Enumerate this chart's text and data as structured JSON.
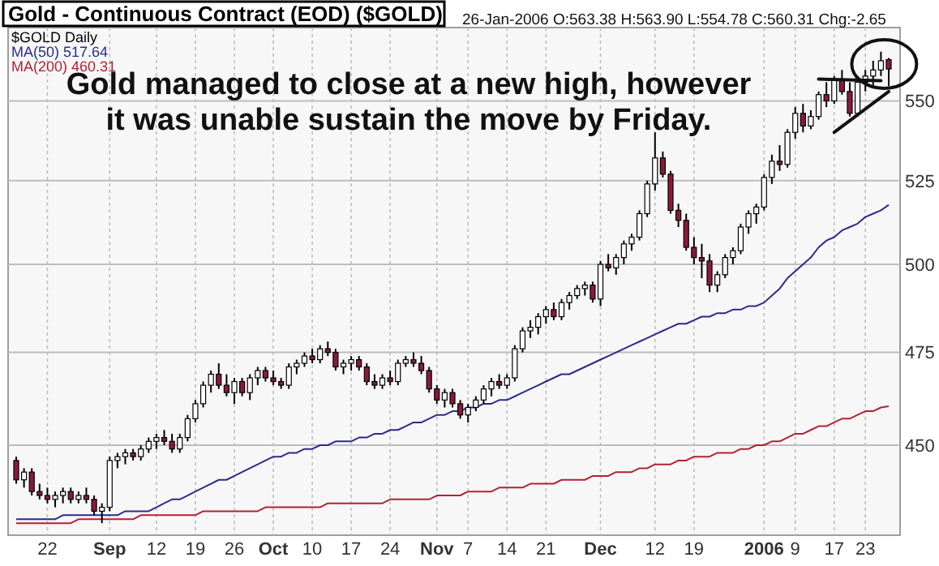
{
  "chart_data": {
    "type": "candlestick",
    "title": "Gold - Continuous Contract (EOD) ($GOLD)",
    "annotations": [
      "26-Jan-2006 O:563.38 H:563.90 L:554.78 C:560.31 Chg:-2.65",
      "Gold managed to close at a new high, however",
      "it was unable sustain the move by Friday."
    ],
    "categories": [
      null,
      null,
      null,
      null,
      "22",
      null,
      null,
      null,
      null,
      null,
      null,
      null,
      "Sep",
      null,
      null,
      null,
      null,
      null,
      "12",
      null,
      null,
      null,
      null,
      "19",
      null,
      null,
      null,
      null,
      "26",
      null,
      null,
      null,
      null,
      "Oct",
      null,
      null,
      null,
      null,
      "10",
      null,
      null,
      null,
      null,
      "17",
      null,
      null,
      null,
      null,
      "24",
      null,
      null,
      null,
      null,
      null,
      "Nov",
      null,
      null,
      null,
      "7",
      null,
      null,
      null,
      null,
      "14",
      null,
      null,
      null,
      null,
      "21",
      null,
      null,
      null,
      null,
      null,
      null,
      "Dec",
      null,
      null,
      null,
      null,
      null,
      null,
      "12",
      null,
      null,
      null,
      null,
      "19",
      null,
      null,
      null,
      null,
      null,
      null,
      null,
      null,
      "2006",
      null,
      null,
      null,
      "9",
      null,
      null,
      null,
      null,
      "17",
      null,
      null,
      null,
      "23",
      null,
      null,
      null
    ],
    "ylim": [
      427,
      574
    ],
    "yticks": [
      450,
      475,
      500,
      525,
      550
    ],
    "log": true,
    "grid": true,
    "legend": "top left",
    "series": [
      {
        "type": "candlestick",
        "name": "$GOLD Daily",
        "color": "#000000",
        "colors": [
          "#8b1a3a",
          "#ffffff",
          "#8b1a3a",
          "#8b1a3a",
          "#8b1a3a",
          "#ffffff",
          "#ffffff",
          "#8b1a3a",
          "#ffffff",
          "#8b1a3a",
          "#8b1a3a",
          "#ffffff",
          "#ffffff",
          "#ffffff",
          "#ffffff",
          "#8b1a3a",
          "#ffffff",
          "#ffffff",
          "#ffffff",
          "#8b1a3a",
          "#8b1a3a",
          "#ffffff",
          "#ffffff",
          "#ffffff",
          "#ffffff",
          "#ffffff",
          "#8b1a3a",
          "#8b1a3a",
          "#ffffff",
          "#8b1a3a",
          "#ffffff",
          "#ffffff",
          "#8b1a3a",
          "#8b1a3a",
          "#8b1a3a",
          "#ffffff",
          "#ffffff",
          "#ffffff",
          "#8b1a3a",
          "#ffffff",
          "#8b1a3a",
          "#8b1a3a",
          "#ffffff",
          "#ffffff",
          "#8b1a3a",
          "#8b1a3a",
          "#8b1a3a",
          "#ffffff",
          "#8b1a3a",
          "#ffffff",
          "#ffffff",
          "#8b1a3a",
          "#8b1a3a",
          "#8b1a3a",
          "#8b1a3a",
          "#ffffff",
          "#8b1a3a",
          "#8b1a3a",
          "#ffffff",
          "#ffffff",
          "#ffffff",
          "#ffffff",
          "#8b1a3a",
          "#ffffff",
          "#ffffff",
          "#ffffff",
          "#ffffff",
          "#ffffff",
          "#ffffff",
          "#8b1a3a",
          "#ffffff",
          "#ffffff",
          "#ffffff",
          "#ffffff",
          "#8b1a3a",
          "#ffffff",
          "#8b1a3a",
          "#ffffff",
          "#ffffff",
          "#ffffff",
          "#ffffff",
          "#ffffff",
          "#ffffff",
          "#8b1a3a",
          "#8b1a3a",
          "#8b1a3a",
          "#8b1a3a",
          "#8b1a3a",
          "#8b1a3a",
          "#8b1a3a",
          "#ffffff",
          "#ffffff",
          "#ffffff",
          "#ffffff",
          "#ffffff",
          "#ffffff",
          "#ffffff",
          "#ffffff",
          "#8b1a3a",
          "#ffffff",
          "#ffffff",
          "#8b1a3a",
          "#ffffff",
          "#ffffff",
          "#8b1a3a",
          "#ffffff",
          "#8b1a3a",
          "#8b1a3a",
          "#ffffff",
          "#ffffff",
          "#ffffff",
          "#ffffff",
          "#8b1a3a"
        ],
        "ohlc": [
          [
            446,
            447,
            440,
            441
          ],
          [
            441,
            444,
            439,
            443
          ],
          [
            443,
            444,
            437,
            438
          ],
          [
            438,
            440,
            436,
            437
          ],
          [
            437,
            439,
            435,
            436
          ],
          [
            436,
            438,
            434,
            437
          ],
          [
            437,
            439,
            435,
            438
          ],
          [
            438,
            439,
            435,
            436
          ],
          [
            436,
            438,
            435,
            437
          ],
          [
            437,
            439,
            435,
            436
          ],
          [
            436,
            437,
            432,
            433
          ],
          [
            433,
            435,
            430,
            434
          ],
          [
            434,
            447,
            433,
            446
          ],
          [
            446,
            448,
            444,
            447
          ],
          [
            447,
            449,
            445,
            448
          ],
          [
            448,
            449,
            446,
            447
          ],
          [
            447,
            450,
            446,
            449
          ],
          [
            449,
            452,
            448,
            451
          ],
          [
            451,
            453,
            449,
            452
          ],
          [
            452,
            454,
            450,
            451
          ],
          [
            451,
            453,
            448,
            449
          ],
          [
            449,
            453,
            448,
            452
          ],
          [
            452,
            458,
            451,
            457
          ],
          [
            457,
            462,
            456,
            461
          ],
          [
            461,
            467,
            460,
            466
          ],
          [
            466,
            470,
            464,
            469
          ],
          [
            469,
            472,
            465,
            466
          ],
          [
            466,
            469,
            463,
            464
          ],
          [
            464,
            468,
            461,
            467
          ],
          [
            467,
            468,
            463,
            464
          ],
          [
            464,
            469,
            462,
            468
          ],
          [
            468,
            471,
            466,
            470
          ],
          [
            470,
            471,
            467,
            468
          ],
          [
            468,
            470,
            466,
            467
          ],
          [
            467,
            468,
            465,
            466
          ],
          [
            466,
            472,
            465,
            471
          ],
          [
            471,
            473,
            469,
            472
          ],
          [
            472,
            475,
            471,
            474
          ],
          [
            474,
            476,
            472,
            473
          ],
          [
            473,
            477,
            472,
            476
          ],
          [
            476,
            478,
            474,
            475
          ],
          [
            475,
            476,
            470,
            471
          ],
          [
            471,
            473,
            469,
            472
          ],
          [
            472,
            474,
            470,
            473
          ],
          [
            473,
            474,
            470,
            471
          ],
          [
            471,
            472,
            466,
            467
          ],
          [
            467,
            469,
            465,
            466
          ],
          [
            466,
            469,
            465,
            468
          ],
          [
            468,
            470,
            466,
            467
          ],
          [
            467,
            473,
            466,
            472
          ],
          [
            472,
            474,
            471,
            473
          ],
          [
            473,
            475,
            471,
            472
          ],
          [
            472,
            474,
            469,
            470
          ],
          [
            470,
            471,
            464,
            465
          ],
          [
            465,
            466,
            461,
            462
          ],
          [
            462,
            465,
            460,
            464
          ],
          [
            464,
            465,
            460,
            461
          ],
          [
            461,
            462,
            457,
            458
          ],
          [
            458,
            461,
            456,
            460
          ],
          [
            460,
            463,
            459,
            462
          ],
          [
            462,
            466,
            461,
            465
          ],
          [
            465,
            468,
            463,
            467
          ],
          [
            467,
            469,
            465,
            466
          ],
          [
            466,
            469,
            465,
            468
          ],
          [
            468,
            477,
            467,
            476
          ],
          [
            476,
            482,
            475,
            481
          ],
          [
            481,
            484,
            479,
            482
          ],
          [
            482,
            486,
            480,
            485
          ],
          [
            485,
            488,
            483,
            487
          ],
          [
            487,
            489,
            484,
            485
          ],
          [
            485,
            490,
            484,
            489
          ],
          [
            489,
            492,
            487,
            491
          ],
          [
            491,
            494,
            490,
            493
          ],
          [
            493,
            495,
            491,
            494
          ],
          [
            494,
            495,
            489,
            490
          ],
          [
            490,
            501,
            488,
            500
          ],
          [
            500,
            503,
            498,
            499
          ],
          [
            499,
            503,
            497,
            502
          ],
          [
            502,
            507,
            500,
            506
          ],
          [
            506,
            509,
            504,
            508
          ],
          [
            508,
            516,
            507,
            515
          ],
          [
            515,
            525,
            514,
            524
          ],
          [
            524,
            540,
            522,
            532
          ],
          [
            532,
            534,
            526,
            527
          ],
          [
            527,
            528,
            515,
            516
          ],
          [
            516,
            518,
            511,
            513
          ],
          [
            513,
            515,
            504,
            505
          ],
          [
            505,
            508,
            500,
            502
          ],
          [
            502,
            506,
            496,
            501
          ],
          [
            501,
            503,
            492,
            494
          ],
          [
            494,
            498,
            492,
            497
          ],
          [
            497,
            503,
            496,
            502
          ],
          [
            502,
            505,
            500,
            504
          ],
          [
            504,
            512,
            503,
            511
          ],
          [
            511,
            516,
            509,
            515
          ],
          [
            515,
            518,
            512,
            517
          ],
          [
            517,
            527,
            516,
            526
          ],
          [
            526,
            533,
            524,
            531
          ],
          [
            531,
            536,
            528,
            530
          ],
          [
            530,
            541,
            529,
            540
          ],
          [
            540,
            548,
            538,
            546
          ],
          [
            546,
            549,
            540,
            542
          ],
          [
            542,
            547,
            541,
            545
          ],
          [
            545,
            553,
            544,
            552
          ],
          [
            552,
            556,
            548,
            550
          ],
          [
            550,
            558,
            549,
            557
          ],
          [
            557,
            560,
            552,
            553
          ],
          [
            553,
            556,
            545,
            546
          ],
          [
            546,
            558,
            545,
            556
          ],
          [
            556,
            560,
            553,
            558
          ],
          [
            558,
            563,
            555,
            560
          ],
          [
            560,
            566,
            558,
            563
          ],
          [
            563.38,
            563.9,
            554.78,
            560.31
          ]
        ]
      },
      {
        "type": "line",
        "name": "MA(50) 517.64",
        "color": "#2b2b8c",
        "values": [
          431,
          431,
          431,
          431,
          431,
          431,
          432,
          432,
          432,
          432,
          432,
          432,
          432,
          432,
          433,
          433,
          433,
          433,
          434,
          435,
          436,
          436,
          437,
          438,
          439,
          440,
          441,
          441,
          442,
          443,
          444,
          445,
          446,
          447,
          447,
          448,
          448,
          449,
          449,
          450,
          450,
          451,
          451,
          451,
          452,
          452,
          453,
          453,
          454,
          454,
          455,
          456,
          456,
          457,
          458,
          458,
          459,
          459,
          460,
          460,
          461,
          461,
          462,
          462,
          463,
          464,
          465,
          466,
          467,
          468,
          469,
          469,
          470,
          471,
          472,
          473,
          474,
          475,
          476,
          477,
          478,
          479,
          480,
          481,
          482,
          483,
          483,
          484,
          485,
          485,
          486,
          486,
          487,
          487,
          488,
          488,
          489,
          491,
          493,
          496,
          498,
          500,
          502,
          505,
          507,
          508,
          510,
          511,
          512,
          514,
          515,
          516,
          517.64
        ]
      },
      {
        "type": "line",
        "name": "MA(200) 460.31",
        "color": "#b22234",
        "values": [
          430,
          430,
          430,
          430,
          430,
          430,
          430,
          430,
          431,
          431,
          431,
          431,
          431,
          431,
          431,
          431,
          432,
          432,
          432,
          432,
          432,
          432,
          432,
          432,
          433,
          433,
          433,
          433,
          433,
          433,
          433,
          433,
          434,
          434,
          434,
          434,
          434,
          434,
          434,
          434,
          435,
          435,
          435,
          435,
          435,
          435,
          435,
          435,
          436,
          436,
          436,
          436,
          436,
          436,
          437,
          437,
          437,
          437,
          438,
          438,
          438,
          438,
          439,
          439,
          439,
          439,
          440,
          440,
          440,
          440,
          441,
          441,
          441,
          441,
          442,
          442,
          442,
          443,
          443,
          443,
          444,
          444,
          445,
          445,
          445,
          446,
          446,
          447,
          447,
          447,
          448,
          448,
          448,
          449,
          449,
          450,
          450,
          451,
          451,
          452,
          453,
          453,
          454,
          455,
          455,
          456,
          457,
          457,
          458,
          459,
          459,
          460,
          460.31
        ]
      }
    ]
  }
}
